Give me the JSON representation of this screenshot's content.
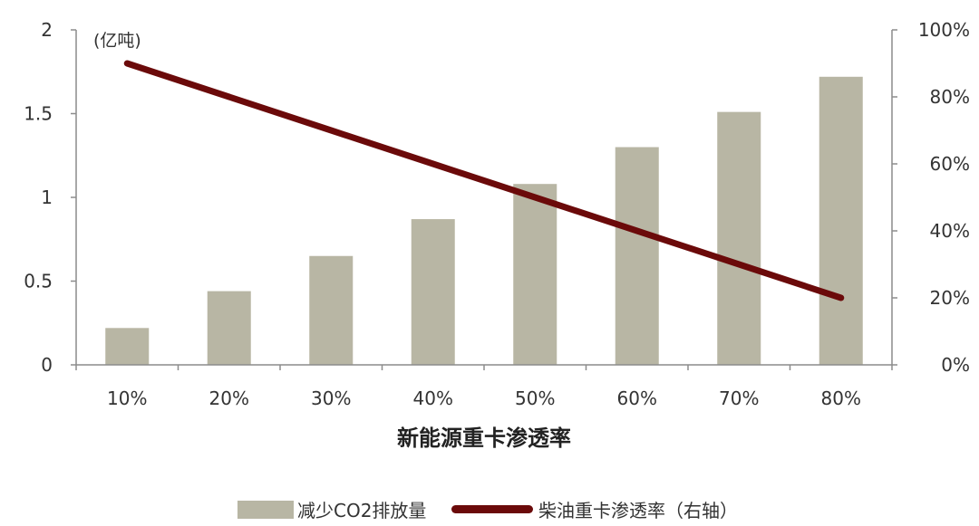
{
  "chart_data": {
    "type": "bar+line",
    "categories": [
      "10%",
      "20%",
      "30%",
      "40%",
      "50%",
      "60%",
      "70%",
      "80%"
    ],
    "xlabel": "新能源重卡渗透率",
    "left_axis": {
      "unit_label": "(亿吨)",
      "ylim": [
        0,
        2
      ],
      "ticks": [
        "0",
        "0.5",
        "1",
        "1.5",
        "2"
      ]
    },
    "right_axis": {
      "ylim": [
        0,
        100
      ],
      "ticks": [
        "0%",
        "20%",
        "40%",
        "60%",
        "80%",
        "100%"
      ]
    },
    "series": [
      {
        "name": "减少CO2排放量",
        "type": "bar",
        "axis": "left",
        "color": "#b8b6a4",
        "values": [
          0.22,
          0.44,
          0.65,
          0.87,
          1.08,
          1.3,
          1.51,
          1.72
        ]
      },
      {
        "name": "柴油重卡渗透率（右轴）",
        "type": "line",
        "axis": "right",
        "color": "#6b0a0a",
        "values": [
          90,
          80,
          70,
          60,
          50,
          40,
          30,
          20
        ]
      }
    ],
    "grid": false,
    "legend_position": "bottom"
  }
}
